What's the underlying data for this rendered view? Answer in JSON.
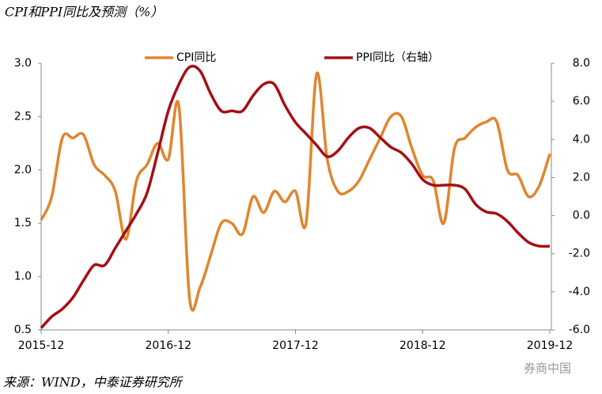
{
  "chart_data": {
    "type": "line",
    "title": "CPI和PPI同比及预测（%）",
    "source": "来源：WIND，中泰证券研究所",
    "watermark": "券商中国",
    "categories": [
      "2015-12",
      null,
      null,
      null,
      null,
      null,
      null,
      null,
      null,
      null,
      null,
      null,
      "2016-12",
      null,
      null,
      null,
      null,
      null,
      null,
      null,
      null,
      null,
      null,
      null,
      "2017-12",
      null,
      null,
      null,
      null,
      null,
      null,
      null,
      null,
      null,
      null,
      null,
      "2018-12",
      null,
      null,
      null,
      null,
      null,
      null,
      null,
      null,
      null,
      null,
      null,
      "2019-12"
    ],
    "series": [
      {
        "name": "CPI同比",
        "color": "#e0852e",
        "axis": "y",
        "values": [
          1.53,
          1.75,
          2.3,
          2.3,
          2.33,
          2.05,
          1.95,
          1.8,
          1.35,
          1.9,
          2.05,
          2.25,
          2.1,
          2.6,
          0.8,
          0.9,
          1.2,
          1.5,
          1.5,
          1.4,
          1.75,
          1.6,
          1.8,
          1.7,
          1.8,
          1.5,
          2.9,
          2.1,
          1.8,
          1.8,
          1.9,
          2.1,
          2.3,
          2.5,
          2.5,
          2.2,
          1.95,
          1.9,
          1.5,
          2.2,
          2.3,
          2.4,
          2.45,
          2.45,
          2.0,
          1.95,
          1.75,
          1.85,
          2.15
        ]
      },
      {
        "name": "PPI同比（右轴）",
        "color": "#a50f15",
        "axis": "y2",
        "values": [
          -5.9,
          -5.3,
          -4.9,
          -4.3,
          -3.4,
          -2.6,
          -2.6,
          -1.7,
          -0.8,
          0.1,
          1.2,
          3.3,
          5.5,
          6.9,
          7.8,
          7.6,
          6.4,
          5.5,
          5.5,
          5.5,
          6.3,
          6.9,
          6.9,
          5.8,
          4.9,
          4.3,
          3.7,
          3.1,
          3.4,
          4.1,
          4.6,
          4.6,
          4.1,
          3.6,
          3.3,
          2.7,
          1.9,
          1.6,
          1.6,
          1.6,
          1.4,
          0.6,
          0.2,
          0.1,
          -0.3,
          -0.9,
          -1.4,
          -1.6,
          -1.6
        ]
      }
    ],
    "ylim": [
      0.5,
      3.0
    ],
    "yticks": [
      0.5,
      {
        "value": 1,
        "label": "1.0"
      },
      1.5,
      {
        "value": 2,
        "label": "2.0"
      },
      2.5,
      {
        "value": 3,
        "label": "3.0"
      }
    ],
    "y2lim": [
      -6,
      8
    ],
    "y2ticks": [
      {
        "value": -6,
        "label": "-6.0"
      },
      {
        "value": -4,
        "label": "-4.0"
      },
      {
        "value": -2,
        "label": "-2.0"
      },
      {
        "value": 0,
        "label": "0.0"
      },
      {
        "value": 2,
        "label": "2.0"
      },
      {
        "value": 4,
        "label": "4.0"
      },
      {
        "value": 6,
        "label": "6.0"
      },
      {
        "value": 8,
        "label": "8.0"
      }
    ],
    "grid": false,
    "legend": "top"
  }
}
